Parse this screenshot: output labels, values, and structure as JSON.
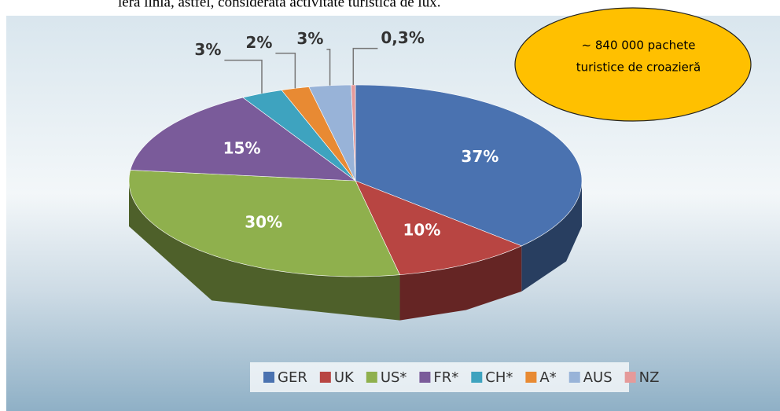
{
  "caption_top": "iera linia, astfel, considerată activitate turistică de lux.",
  "chart_data": {
    "type": "pie3d",
    "annotation": [
      "~ 840 000 pachete",
      "turistice de croazieră"
    ],
    "categories": [
      "GER",
      "UK",
      "US*",
      "FR*",
      "CH*",
      "A*",
      "AUS",
      "NZ"
    ],
    "values": [
      37,
      10,
      30,
      15,
      3,
      2,
      3,
      0.3
    ],
    "value_labels": [
      "37%",
      "10%",
      "30%",
      "15%",
      "3%",
      "2%",
      "3%",
      "0,3%"
    ],
    "colors": [
      "#4a72b0",
      "#b84542",
      "#8fb04d",
      "#7a5b9a",
      "#3ea3bf",
      "#e88a33",
      "#98b3d8",
      "#e59a9a"
    ],
    "legend": "bottom"
  }
}
